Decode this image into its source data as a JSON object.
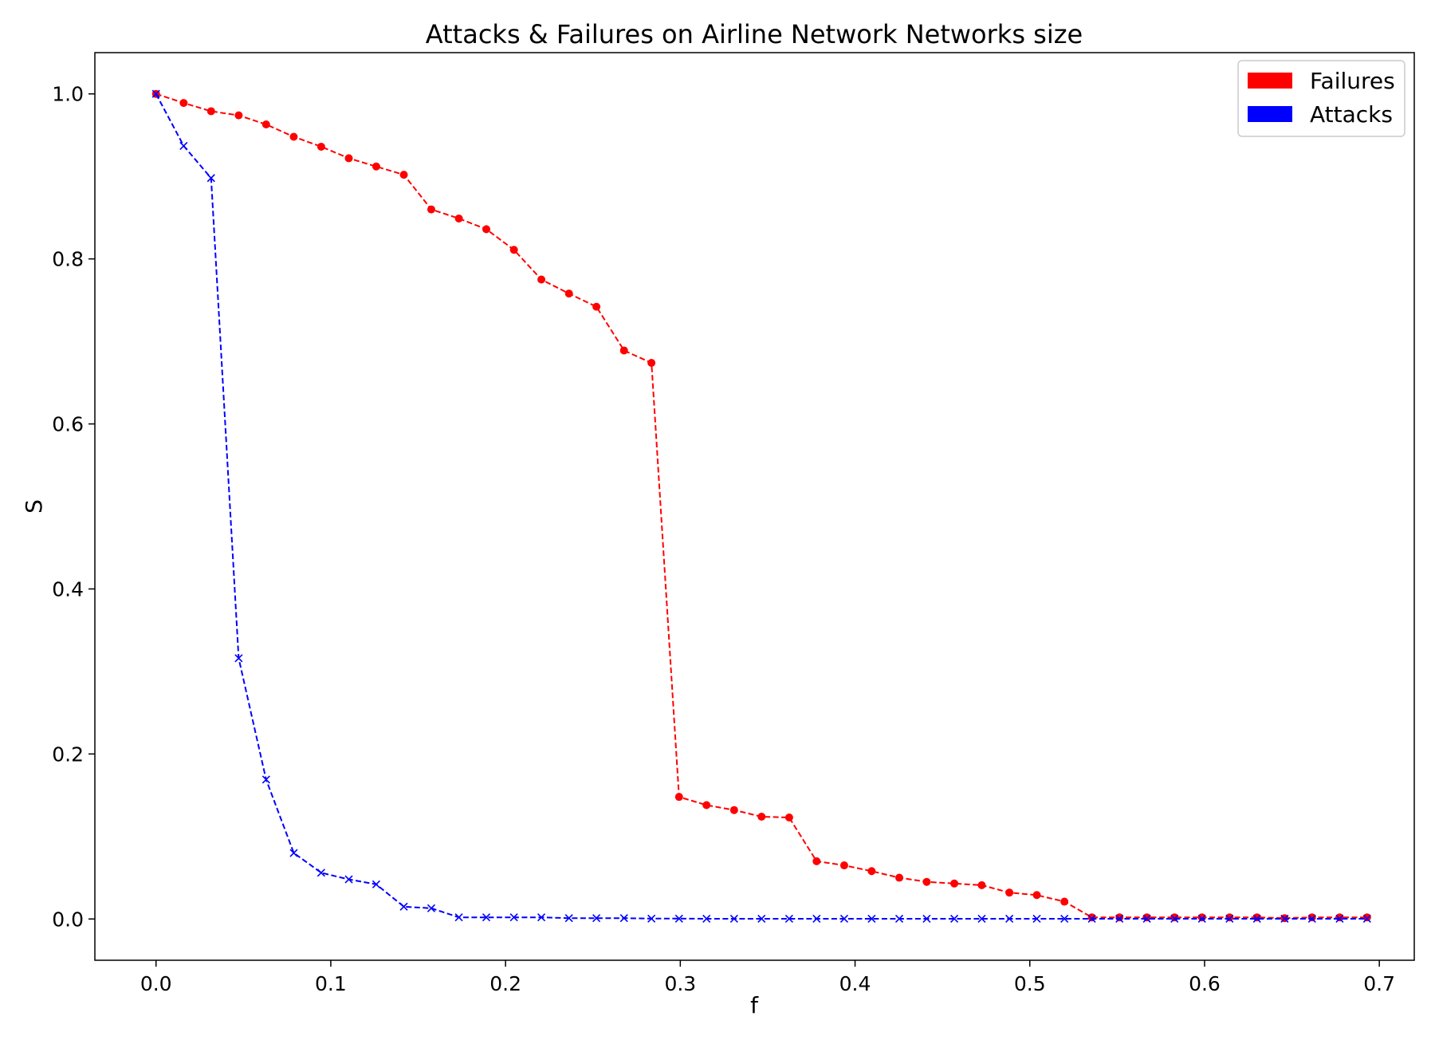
{
  "chart_data": {
    "type": "line",
    "title": "Attacks & Failures on Airline Network Networks size",
    "xlabel": "f",
    "ylabel": "S",
    "xlim": [
      -0.035,
      0.72
    ],
    "ylim": [
      -0.05,
      1.05
    ],
    "xticks": [
      0.0,
      0.1,
      0.2,
      0.3,
      0.4,
      0.5,
      0.6,
      0.7
    ],
    "xtick_labels": [
      "0.0",
      "0.1",
      "0.2",
      "0.3",
      "0.4",
      "0.5",
      "0.6",
      "0.7"
    ],
    "yticks": [
      0.0,
      0.2,
      0.4,
      0.6,
      0.8,
      1.0
    ],
    "ytick_labels": [
      "0.0",
      "0.2",
      "0.4",
      "0.6",
      "0.8",
      "1.0"
    ],
    "grid": false,
    "legend": {
      "position": "top-right",
      "entries": [
        {
          "label": "Failures",
          "color": "#ff0000"
        },
        {
          "label": "Attacks",
          "color": "#0000ff"
        }
      ]
    },
    "x": [
      0.0,
      0.0158,
      0.0315,
      0.0473,
      0.063,
      0.0788,
      0.0945,
      0.1103,
      0.126,
      0.1418,
      0.1575,
      0.1733,
      0.189,
      0.2048,
      0.2205,
      0.2363,
      0.252,
      0.2678,
      0.2835,
      0.2993,
      0.315,
      0.3308,
      0.3465,
      0.3623,
      0.378,
      0.3938,
      0.4095,
      0.4253,
      0.441,
      0.4568,
      0.4725,
      0.4883,
      0.504,
      0.5198,
      0.5355,
      0.5513,
      0.567,
      0.5828,
      0.5985,
      0.6143,
      0.63,
      0.6458,
      0.6615,
      0.6773,
      0.693
    ],
    "series": [
      {
        "name": "Failures",
        "color": "#ff0000",
        "marker": "circle",
        "linestyle": "dashed",
        "values": [
          1.0,
          0.989,
          0.979,
          0.974,
          0.963,
          0.948,
          0.936,
          0.922,
          0.912,
          0.902,
          0.86,
          0.849,
          0.836,
          0.811,
          0.775,
          0.758,
          0.742,
          0.689,
          0.674,
          0.148,
          0.138,
          0.132,
          0.124,
          0.123,
          0.07,
          0.065,
          0.058,
          0.05,
          0.045,
          0.043,
          0.041,
          0.032,
          0.029,
          0.021,
          0.002,
          0.002,
          0.002,
          0.002,
          0.002,
          0.002,
          0.002,
          0.001,
          0.002,
          0.002,
          0.002
        ]
      },
      {
        "name": "Attacks",
        "color": "#0000ff",
        "marker": "x",
        "linestyle": "dashed",
        "values": [
          1.0,
          0.937,
          0.898,
          0.316,
          0.169,
          0.08,
          0.056,
          0.048,
          0.042,
          0.015,
          0.013,
          0.002,
          0.002,
          0.002,
          0.002,
          0.001,
          0.001,
          0.001,
          0.0005,
          0.0005,
          0.0003,
          0.0003,
          0.0003,
          0.0003,
          0.0003,
          0.0003,
          0.0003,
          0.0003,
          0.0003,
          0.0003,
          0.0003,
          0.0003,
          0.0003,
          0.0003,
          0.0003,
          0.0003,
          0.0003,
          0.0003,
          0.0003,
          0.0003,
          0.0003,
          0.0003,
          0.0003,
          0.0003,
          0.0003
        ]
      }
    ]
  }
}
